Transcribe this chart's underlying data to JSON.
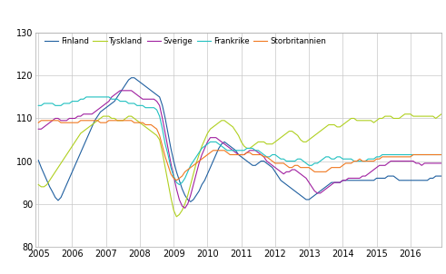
{
  "legend_labels": [
    "Finland",
    "Tyskland",
    "Sverige",
    "Frankrike",
    "Storbritannien"
  ],
  "colors": {
    "Finland": "#2060A0",
    "Tyskland": "#B0D020",
    "Sverige": "#A020A0",
    "Frankrike": "#20C0C0",
    "Storbritannien": "#F07820"
  },
  "ylim": [
    80,
    130
  ],
  "yticks": [
    80,
    90,
    100,
    110,
    120,
    130
  ],
  "xlim_start": 2005.0,
  "xlim_end": 2016.92,
  "xtick_positions": [
    2005,
    2006,
    2007,
    2008,
    2009,
    2010,
    2011,
    2012,
    2013,
    2014,
    2015,
    2016
  ],
  "xtick_labels": [
    "2005",
    "2006",
    "2007",
    "2008",
    "2009",
    "2010",
    "2011",
    "2012",
    "2013",
    "2014",
    "2015",
    "2016"
  ],
  "linewidth": 0.8,
  "grid_color": "#C8C8C8",
  "bg_color": "#FFFFFF",
  "Finland": [
    100.2,
    98.5,
    97.0,
    95.5,
    94.0,
    92.8,
    91.5,
    90.8,
    91.5,
    93.0,
    94.5,
    96.0,
    97.5,
    99.0,
    100.5,
    102.0,
    103.5,
    105.0,
    106.5,
    108.0,
    109.5,
    110.5,
    111.5,
    112.0,
    112.5,
    113.0,
    113.5,
    114.0,
    115.0,
    116.0,
    117.0,
    118.0,
    119.0,
    119.5,
    119.5,
    119.0,
    118.5,
    118.0,
    117.5,
    117.0,
    116.5,
    116.0,
    115.5,
    115.0,
    113.0,
    110.0,
    106.5,
    103.0,
    100.0,
    97.5,
    95.5,
    93.5,
    92.0,
    91.0,
    90.5,
    91.0,
    92.0,
    93.0,
    94.5,
    95.5,
    97.0,
    98.5,
    100.0,
    101.5,
    103.0,
    104.0,
    104.5,
    104.0,
    103.5,
    103.0,
    102.5,
    101.5,
    101.0,
    100.5,
    100.0,
    99.5,
    99.0,
    99.0,
    99.5,
    100.0,
    100.0,
    99.5,
    99.0,
    98.5,
    97.5,
    96.5,
    95.5,
    95.0,
    94.5,
    94.0,
    93.5,
    93.0,
    92.5,
    92.0,
    91.5,
    91.0,
    91.0,
    91.5,
    92.0,
    92.5,
    93.0,
    93.5,
    94.0,
    94.5,
    95.0,
    95.0,
    95.0,
    95.0,
    95.5,
    95.5,
    95.5,
    95.5,
    95.5,
    95.5,
    95.5,
    95.5,
    95.5,
    95.5,
    95.5,
    95.5,
    96.0,
    96.0,
    96.0,
    96.0,
    96.5,
    96.5,
    96.5,
    96.0,
    95.5,
    95.5,
    95.5,
    95.5,
    95.5,
    95.5,
    95.5,
    95.5,
    95.5,
    95.5,
    95.5,
    96.0,
    96.0,
    96.5,
    96.5,
    96.5
  ],
  "Tyskland": [
    94.5,
    94.0,
    94.0,
    94.5,
    95.5,
    96.5,
    97.5,
    98.5,
    99.5,
    100.5,
    101.5,
    102.5,
    103.5,
    104.5,
    105.5,
    106.5,
    107.0,
    107.5,
    108.0,
    108.5,
    109.0,
    109.5,
    110.0,
    110.5,
    110.5,
    110.5,
    110.0,
    110.0,
    109.5,
    109.5,
    109.5,
    110.0,
    110.5,
    110.5,
    110.0,
    109.5,
    109.0,
    108.5,
    108.0,
    107.5,
    107.0,
    106.5,
    106.0,
    105.0,
    102.0,
    98.5,
    95.0,
    91.5,
    88.5,
    87.0,
    87.5,
    88.5,
    90.0,
    92.0,
    94.5,
    97.0,
    99.5,
    101.5,
    103.5,
    105.0,
    106.5,
    107.5,
    108.0,
    108.5,
    109.0,
    109.5,
    109.5,
    109.0,
    108.5,
    108.0,
    107.0,
    106.0,
    104.5,
    103.5,
    103.0,
    103.0,
    103.5,
    104.0,
    104.5,
    104.5,
    104.5,
    104.0,
    104.0,
    104.0,
    104.5,
    105.0,
    105.5,
    106.0,
    106.5,
    107.0,
    107.0,
    106.5,
    106.0,
    105.0,
    104.5,
    104.5,
    105.0,
    105.5,
    106.0,
    106.5,
    107.0,
    107.5,
    108.0,
    108.5,
    108.5,
    108.5,
    108.0,
    108.0,
    108.5,
    109.0,
    109.5,
    110.0,
    110.0,
    109.5,
    109.5,
    109.5,
    109.5,
    109.5,
    109.5,
    109.0,
    109.5,
    110.0,
    110.0,
    110.5,
    110.5,
    110.5,
    110.0,
    110.0,
    110.0,
    110.5,
    111.0,
    111.0,
    111.0,
    110.5,
    110.5,
    110.5,
    110.5,
    110.5,
    110.5,
    110.5,
    110.5,
    110.0,
    110.5,
    111.0
  ],
  "Sverige": [
    107.5,
    107.5,
    108.0,
    108.5,
    109.0,
    109.5,
    110.0,
    110.0,
    109.5,
    109.5,
    109.5,
    110.0,
    110.0,
    110.0,
    110.5,
    110.5,
    111.0,
    111.0,
    111.0,
    111.0,
    111.5,
    112.0,
    112.5,
    113.0,
    113.5,
    114.0,
    115.0,
    115.5,
    116.0,
    116.5,
    116.5,
    116.5,
    116.5,
    116.5,
    116.0,
    115.5,
    115.0,
    114.5,
    114.5,
    114.5,
    114.5,
    114.5,
    114.0,
    113.0,
    110.0,
    106.5,
    103.0,
    99.5,
    96.5,
    93.5,
    91.0,
    89.5,
    89.0,
    90.0,
    92.0,
    94.5,
    97.0,
    99.5,
    101.5,
    103.0,
    104.5,
    105.5,
    105.5,
    105.5,
    105.0,
    104.5,
    104.0,
    103.5,
    103.0,
    102.5,
    102.0,
    101.5,
    101.5,
    101.5,
    102.0,
    102.5,
    102.5,
    102.5,
    102.0,
    101.5,
    101.0,
    100.0,
    99.5,
    99.0,
    98.5,
    98.0,
    97.5,
    97.0,
    97.5,
    97.5,
    98.0,
    98.0,
    97.5,
    97.0,
    96.5,
    96.0,
    95.0,
    94.0,
    93.0,
    92.5,
    92.5,
    93.0,
    93.5,
    94.0,
    94.5,
    95.0,
    95.0,
    95.0,
    95.5,
    95.5,
    96.0,
    96.0,
    96.0,
    96.0,
    96.0,
    96.5,
    96.5,
    97.0,
    97.5,
    98.0,
    98.5,
    99.0,
    99.0,
    99.0,
    99.5,
    100.0,
    100.0,
    100.0,
    100.0,
    100.0,
    100.0,
    100.0,
    100.0,
    100.0,
    99.5,
    99.5,
    99.0,
    99.5,
    99.5,
    99.5,
    99.5,
    99.5,
    99.5,
    99.5
  ],
  "Frankrike": [
    113.0,
    113.0,
    113.5,
    113.5,
    113.5,
    113.5,
    113.0,
    113.0,
    113.0,
    113.5,
    113.5,
    113.5,
    114.0,
    114.0,
    114.0,
    114.5,
    114.5,
    115.0,
    115.0,
    115.0,
    115.0,
    115.0,
    115.0,
    115.0,
    115.0,
    115.0,
    114.5,
    114.5,
    114.5,
    114.0,
    114.0,
    114.0,
    113.5,
    113.5,
    113.5,
    113.0,
    113.0,
    113.0,
    112.5,
    112.5,
    112.5,
    112.5,
    112.0,
    110.5,
    107.5,
    104.0,
    101.5,
    98.5,
    96.5,
    95.0,
    94.5,
    95.0,
    96.0,
    97.5,
    99.0,
    100.0,
    101.0,
    102.0,
    103.0,
    103.5,
    104.0,
    104.5,
    104.5,
    104.5,
    104.0,
    103.5,
    103.0,
    102.5,
    102.5,
    102.5,
    102.5,
    102.5,
    102.5,
    102.5,
    103.0,
    103.0,
    103.0,
    102.5,
    102.5,
    102.0,
    101.5,
    101.0,
    101.0,
    101.5,
    101.5,
    101.0,
    100.5,
    100.5,
    100.0,
    100.0,
    100.0,
    100.0,
    100.5,
    100.5,
    100.0,
    99.5,
    99.0,
    99.0,
    99.5,
    99.5,
    100.0,
    100.5,
    101.0,
    101.0,
    100.5,
    100.5,
    101.0,
    101.0,
    100.5,
    100.5,
    100.5,
    100.5,
    100.0,
    100.0,
    100.0,
    100.0,
    100.0,
    100.5,
    100.5,
    100.5,
    101.0,
    101.0,
    101.5,
    101.5,
    101.5,
    101.5,
    101.5,
    101.5,
    101.5,
    101.5,
    101.5,
    101.5,
    101.5,
    101.5,
    101.5,
    101.5,
    101.5,
    101.5,
    101.5,
    101.5,
    101.5,
    101.5,
    101.5,
    101.5
  ],
  "Storbritannien": [
    109.0,
    109.5,
    109.5,
    109.5,
    109.5,
    109.5,
    109.5,
    109.5,
    109.0,
    109.0,
    109.0,
    109.0,
    109.0,
    109.0,
    109.0,
    109.5,
    109.5,
    109.5,
    109.5,
    109.5,
    109.5,
    109.5,
    109.0,
    109.0,
    109.0,
    109.5,
    109.5,
    109.5,
    109.5,
    109.5,
    109.5,
    109.5,
    109.5,
    109.5,
    109.0,
    109.0,
    109.0,
    109.0,
    108.5,
    108.5,
    108.5,
    108.0,
    107.5,
    106.0,
    103.5,
    101.0,
    99.0,
    97.0,
    96.0,
    95.5,
    96.0,
    96.5,
    97.5,
    98.0,
    98.5,
    99.0,
    99.5,
    100.0,
    100.5,
    101.0,
    101.5,
    102.0,
    102.5,
    102.5,
    102.5,
    102.5,
    102.5,
    102.0,
    101.5,
    101.5,
    101.5,
    101.5,
    101.5,
    101.5,
    102.0,
    102.0,
    101.5,
    101.5,
    101.5,
    101.5,
    101.0,
    101.0,
    100.5,
    100.0,
    99.5,
    99.5,
    99.5,
    99.5,
    99.0,
    98.5,
    98.5,
    99.0,
    99.0,
    98.5,
    98.5,
    98.5,
    98.5,
    98.0,
    97.5,
    97.5,
    97.5,
    97.5,
    97.5,
    98.0,
    98.5,
    98.5,
    98.5,
    98.5,
    99.0,
    99.5,
    99.5,
    99.5,
    100.0,
    100.0,
    100.5,
    100.0,
    100.0,
    100.0,
    100.0,
    100.0,
    100.5,
    100.5,
    101.0,
    101.0,
    101.0,
    101.0,
    101.0,
    101.0,
    101.0,
    101.0,
    101.0,
    101.0,
    101.0,
    101.5,
    101.5,
    101.5,
    101.5,
    101.5,
    101.5,
    101.5,
    101.5,
    101.5,
    101.5,
    101.5
  ]
}
